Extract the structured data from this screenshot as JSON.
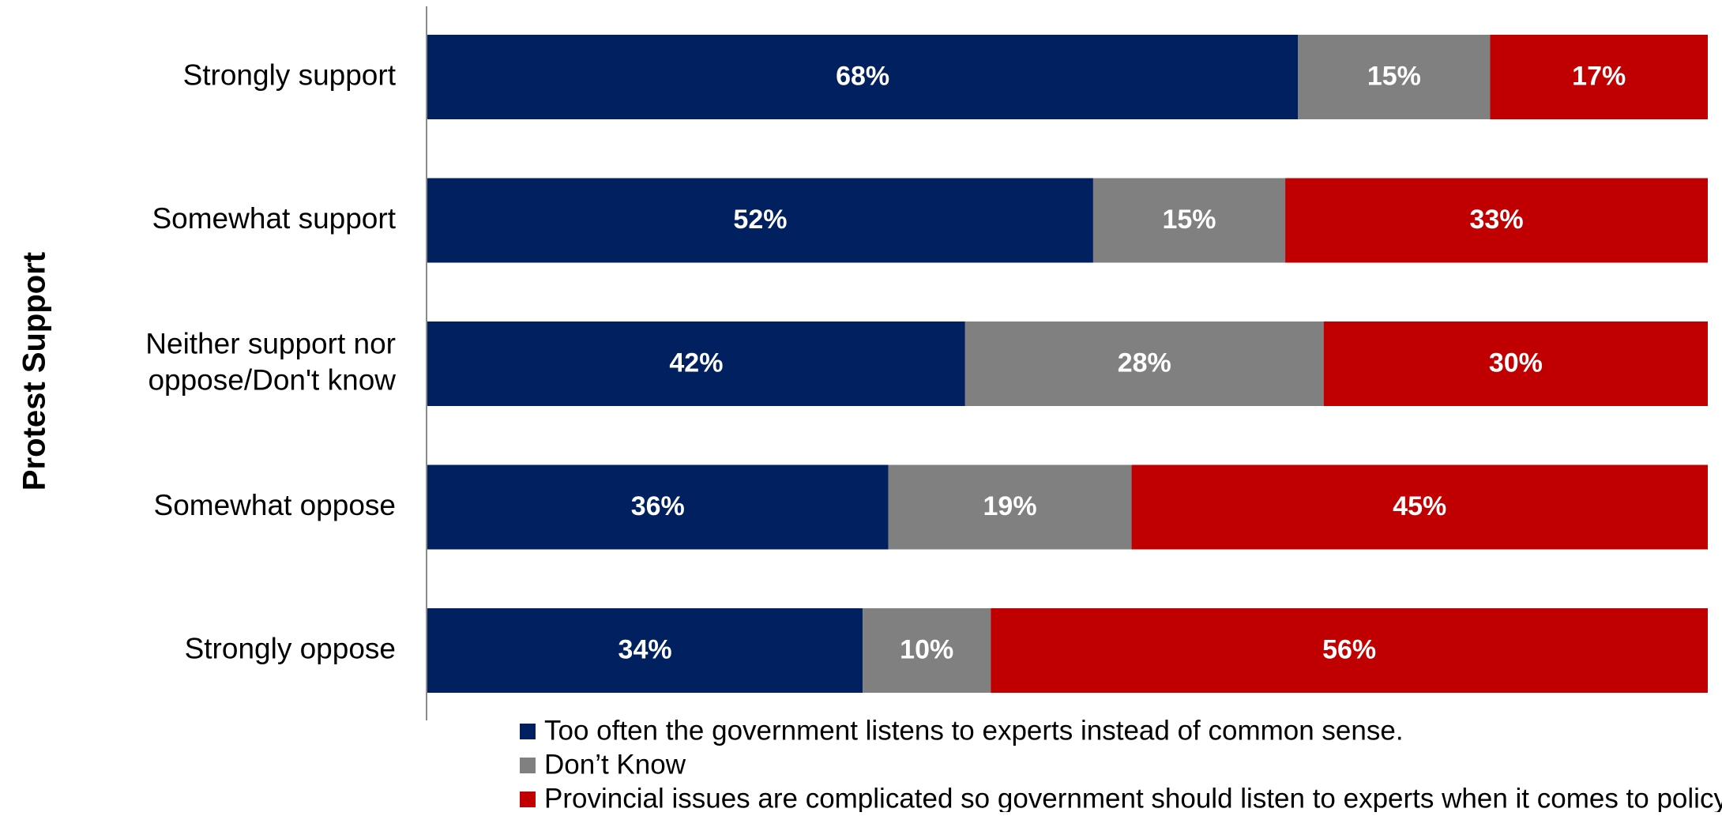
{
  "chart_data": {
    "type": "bar",
    "orientation": "horizontal",
    "stacked": true,
    "ylabel": "Protest Support",
    "categories": [
      "Strongly support",
      "Somewhat support",
      "Neither support nor oppose/Don't know",
      "Somewhat oppose",
      "Strongly oppose"
    ],
    "category_lines": [
      [
        "Strongly support"
      ],
      [
        "Somewhat support"
      ],
      [
        "Neither support nor",
        "oppose/Don't know"
      ],
      [
        "Somewhat oppose"
      ],
      [
        "Strongly oppose"
      ]
    ],
    "series": [
      {
        "name": "Too often the government listens to experts instead of common sense.",
        "color": "#002060",
        "values": [
          68,
          52,
          42,
          36,
          34
        ],
        "labels": [
          "68%",
          "52%",
          "42%",
          "36%",
          "34%"
        ]
      },
      {
        "name": "Don’t Know",
        "color": "#808080",
        "values": [
          15,
          15,
          28,
          19,
          10
        ],
        "labels": [
          "15%",
          "15%",
          "28%",
          "19%",
          "10%"
        ]
      },
      {
        "name": "Provincial issues are complicated so government should listen to experts when it comes to policy.",
        "color": "#C00000",
        "values": [
          17,
          33,
          30,
          45,
          56
        ],
        "labels": [
          "17%",
          "33%",
          "30%",
          "45%",
          "56%"
        ]
      }
    ],
    "xlim": [
      0,
      100
    ],
    "grid": false,
    "legend_position": "bottom"
  }
}
